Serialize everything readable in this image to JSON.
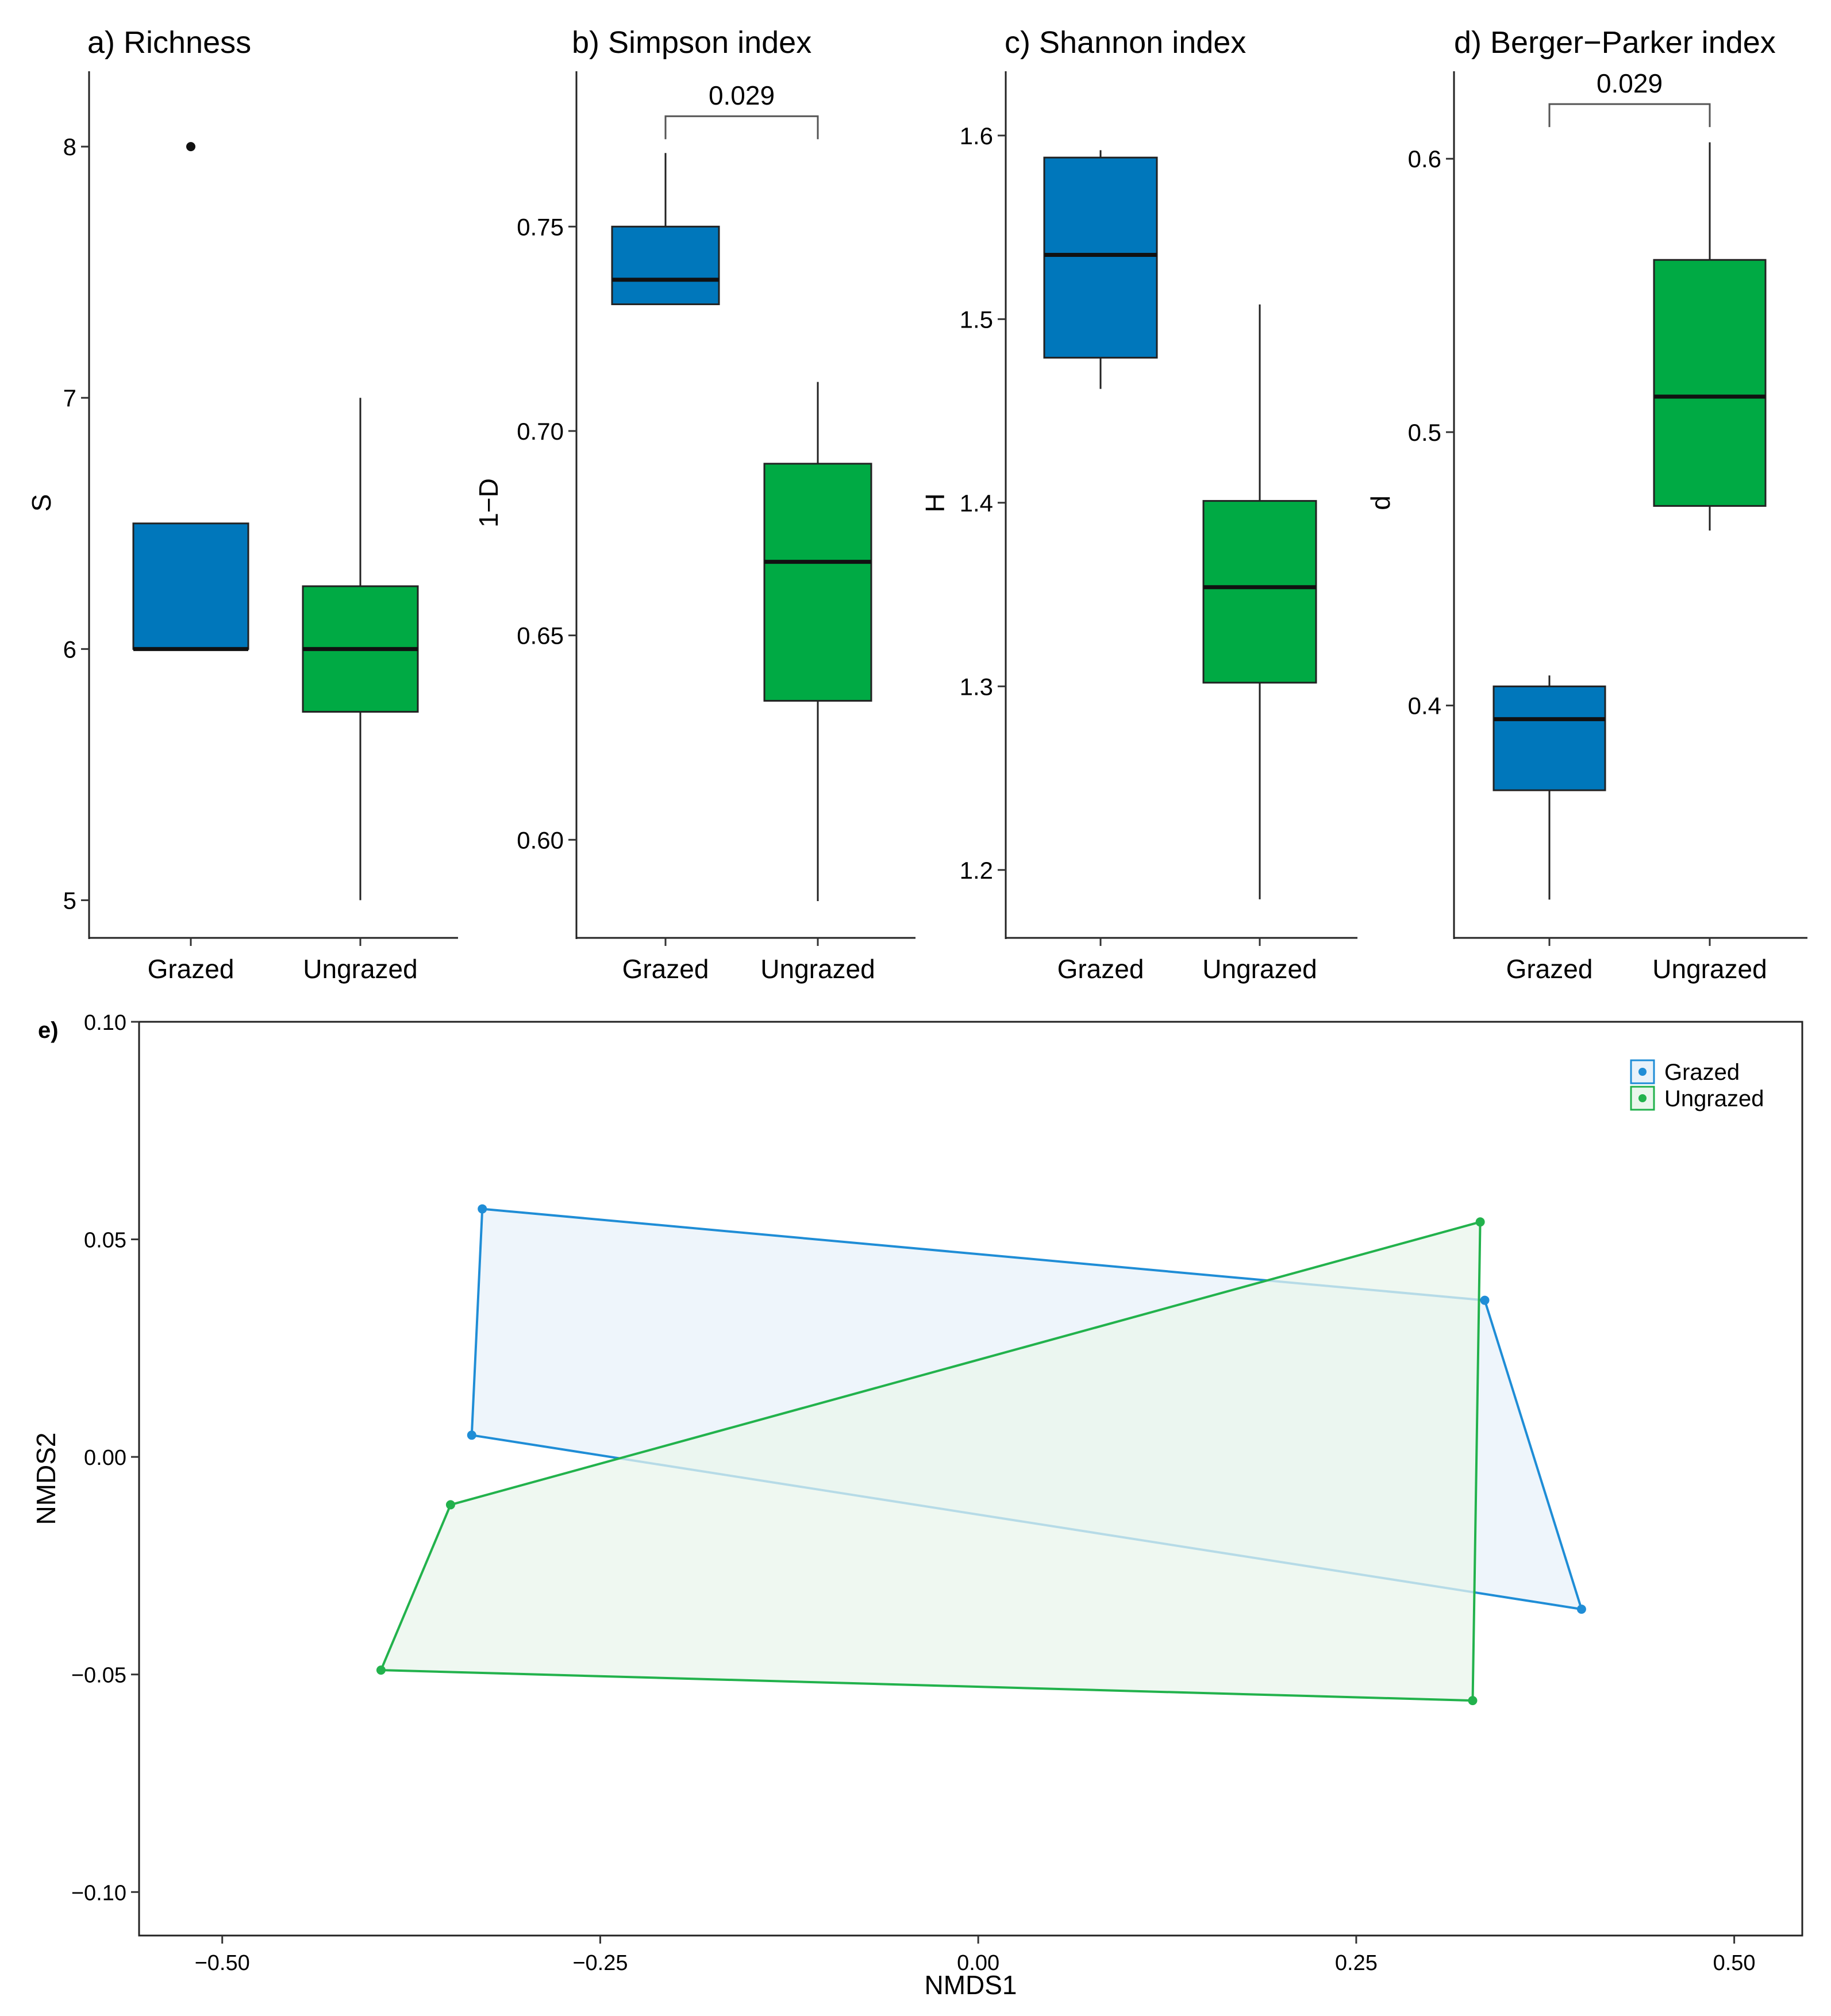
{
  "chart_data": [
    {
      "type": "box",
      "title": "a) Richness",
      "ylabel": "S",
      "categories": [
        "Grazed",
        "Ungrazed"
      ],
      "ylim": [
        4.85,
        8.3
      ],
      "yticks": [
        5,
        6,
        7,
        8
      ],
      "boxes": [
        {
          "name": "Grazed",
          "min": 6,
          "q1": 6,
          "median": 6,
          "q3": 6.5,
          "max": 6.5,
          "outliers": [
            8
          ],
          "color": "#0077BB"
        },
        {
          "name": "Ungrazed",
          "min": 5,
          "q1": 5.75,
          "median": 6,
          "q3": 6.25,
          "max": 7,
          "outliers": [],
          "color": "#00AA44"
        }
      ],
      "significance": null
    },
    {
      "type": "box",
      "title": "b) Simpson index",
      "ylabel": "1−D",
      "categories": [
        "Grazed",
        "Ungrazed"
      ],
      "ylim": [
        0.576,
        0.788
      ],
      "yticks": [
        0.6,
        0.65,
        0.7,
        0.75
      ],
      "ytick_labels": [
        "0.60",
        "0.65",
        "0.70",
        "0.75"
      ],
      "boxes": [
        {
          "name": "Grazed",
          "min": 0.731,
          "q1": 0.731,
          "median": 0.737,
          "q3": 0.75,
          "max": 0.768,
          "outliers": [],
          "color": "#0077BB"
        },
        {
          "name": "Ungrazed",
          "min": 0.585,
          "q1": 0.634,
          "median": 0.668,
          "q3": 0.692,
          "max": 0.712,
          "outliers": [],
          "color": "#00AA44"
        }
      ],
      "significance": {
        "label": "0.029",
        "y": 0.777
      }
    },
    {
      "type": "box",
      "title": "c) Shannon index",
      "ylabel": "H",
      "categories": [
        "Grazed",
        "Ungrazed"
      ],
      "ylim": [
        1.163,
        1.635
      ],
      "yticks": [
        1.2,
        1.3,
        1.4,
        1.5,
        1.6
      ],
      "ytick_labels": [
        "1.2",
        "1.3",
        "1.4",
        "1.5",
        "1.6"
      ],
      "boxes": [
        {
          "name": "Grazed",
          "min": 1.462,
          "q1": 1.479,
          "median": 1.535,
          "q3": 1.588,
          "max": 1.592,
          "outliers": [],
          "color": "#0077BB"
        },
        {
          "name": "Ungrazed",
          "min": 1.184,
          "q1": 1.302,
          "median": 1.354,
          "q3": 1.401,
          "max": 1.508,
          "outliers": [],
          "color": "#00AA44"
        }
      ],
      "significance": null
    },
    {
      "type": "box",
      "title": "d) Berger−Parker index",
      "ylabel": "d",
      "categories": [
        "Grazed",
        "Ungrazed"
      ],
      "ylim": [
        0.315,
        0.632
      ],
      "yticks": [
        0.4,
        0.5,
        0.6
      ],
      "ytick_labels": [
        "0.4",
        "0.5",
        "0.6"
      ],
      "boxes": [
        {
          "name": "Grazed",
          "min": 0.329,
          "q1": 0.369,
          "median": 0.395,
          "q3": 0.407,
          "max": 0.411,
          "outliers": [],
          "color": "#0077BB"
        },
        {
          "name": "Ungrazed",
          "min": 0.464,
          "q1": 0.473,
          "median": 0.513,
          "q3": 0.563,
          "max": 0.606,
          "outliers": [],
          "color": "#00AA44"
        }
      ],
      "significance": {
        "label": "0.029",
        "y": 0.62
      }
    },
    {
      "type": "scatter",
      "title": "e)",
      "xlabel": "NMDS1",
      "ylabel": "NMDS2",
      "xlim": [
        -0.555,
        0.545
      ],
      "ylim": [
        -0.11,
        0.1
      ],
      "xticks": [
        -0.5,
        -0.25,
        0.0,
        0.25,
        0.5
      ],
      "xtick_labels": [
        "−0.50",
        "−0.25",
        "0.00",
        "0.25",
        "0.50"
      ],
      "yticks": [
        -0.1,
        -0.05,
        0.0,
        0.05,
        0.1
      ],
      "ytick_labels": [
        "−0.10",
        "−0.05",
        "0.00",
        "0.05",
        "0.10"
      ],
      "grid": false,
      "legend_position": "top-right",
      "series": [
        {
          "name": "Grazed",
          "color": "#1F8DD6",
          "fill": "#E8F2FA",
          "points": [
            [
              -0.328,
              0.057
            ],
            [
              0.335,
              0.036
            ],
            [
              0.399,
              -0.035
            ],
            [
              -0.335,
              0.005
            ]
          ]
        },
        {
          "name": "Ungrazed",
          "color": "#22B24C",
          "fill": "#EAF6EC",
          "points": [
            [
              0.332,
              0.054
            ],
            [
              0.327,
              -0.056
            ],
            [
              -0.395,
              -0.049
            ],
            [
              -0.349,
              -0.011
            ]
          ]
        }
      ]
    }
  ]
}
